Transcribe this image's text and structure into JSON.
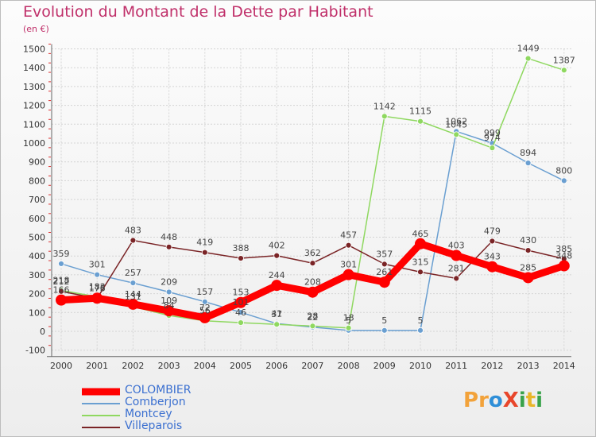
{
  "title": "Evolution du Montant de la Dette par Habitant",
  "unit_label": "(en €)",
  "logo": {
    "text": "ProXiti",
    "letters": [
      {
        "ch": "P",
        "color": "#f2a23a"
      },
      {
        "ch": "r",
        "color": "#f2a23a"
      },
      {
        "ch": "o",
        "color": "#2f8fd8"
      },
      {
        "ch": "X",
        "color": "#e8462b"
      },
      {
        "ch": "i",
        "color": "#39a24a"
      },
      {
        "ch": "t",
        "color": "#e8b62a"
      },
      {
        "ch": "i",
        "color": "#39a24a"
      }
    ]
  },
  "colors": {
    "axis_text": "#333333",
    "grid": "#d4d4d4",
    "value_label": "#444444",
    "legend_text": "#3a6fd0"
  },
  "chart_data": {
    "type": "line",
    "x": [
      "2000",
      "2001",
      "2002",
      "2003",
      "2004",
      "2005",
      "2006",
      "2007",
      "2008",
      "2009",
      "2010",
      "2011",
      "2012",
      "2013",
      "2014"
    ],
    "y_ticks": [
      -100,
      0,
      100,
      200,
      300,
      400,
      500,
      600,
      700,
      800,
      900,
      1000,
      1100,
      1200,
      1300,
      1400,
      1500
    ],
    "ylim": [
      -100,
      1500
    ],
    "grid": true,
    "series": [
      {
        "name": "COLOMBIER",
        "color": "#ff0000",
        "emphasis": true,
        "values": [
          166,
          176,
          144,
          109,
          72,
          153,
          244,
          208,
          301,
          261,
          465,
          403,
          343,
          285,
          348
        ],
        "labels": [
          "166",
          "176",
          "144",
          "109",
          "72",
          "153",
          "244",
          "208",
          "301",
          "261",
          "465",
          "403",
          "343",
          "285",
          "348"
        ]
      },
      {
        "name": "Comberjon",
        "color": "#6a9fd1",
        "values": [
          359,
          301,
          257,
          209,
          157,
          101,
          41,
          22,
          5,
          5,
          5,
          1062,
          999,
          894,
          800
        ],
        "labels": [
          "359",
          "301",
          "257",
          "209",
          "157",
          "101",
          "41",
          "22",
          "5",
          "5",
          "5",
          "1062",
          "999",
          "894",
          "800"
        ]
      },
      {
        "name": "Montcey",
        "color": "#8fd860",
        "values": [
          218,
          183,
          131,
          84,
          56,
          46,
          37,
          28,
          18,
          1142,
          1115,
          1045,
          974,
          1449,
          1387
        ],
        "labels": [
          "218",
          "183",
          "131",
          "84",
          "56",
          "46",
          "37",
          "28",
          "18",
          "1142",
          "1115",
          "1045",
          "974",
          "1449",
          "1387"
        ]
      },
      {
        "name": "Villeparois",
        "color": "#7a2426",
        "values": [
          212,
          175,
          483,
          448,
          419,
          388,
          402,
          362,
          457,
          357,
          315,
          281,
          479,
          430,
          385
        ],
        "labels": [
          "212",
          "175",
          "483",
          "448",
          "419",
          "388",
          "402",
          "362",
          "457",
          "357",
          "315",
          "281",
          "479",
          "430",
          "385"
        ]
      }
    ]
  }
}
